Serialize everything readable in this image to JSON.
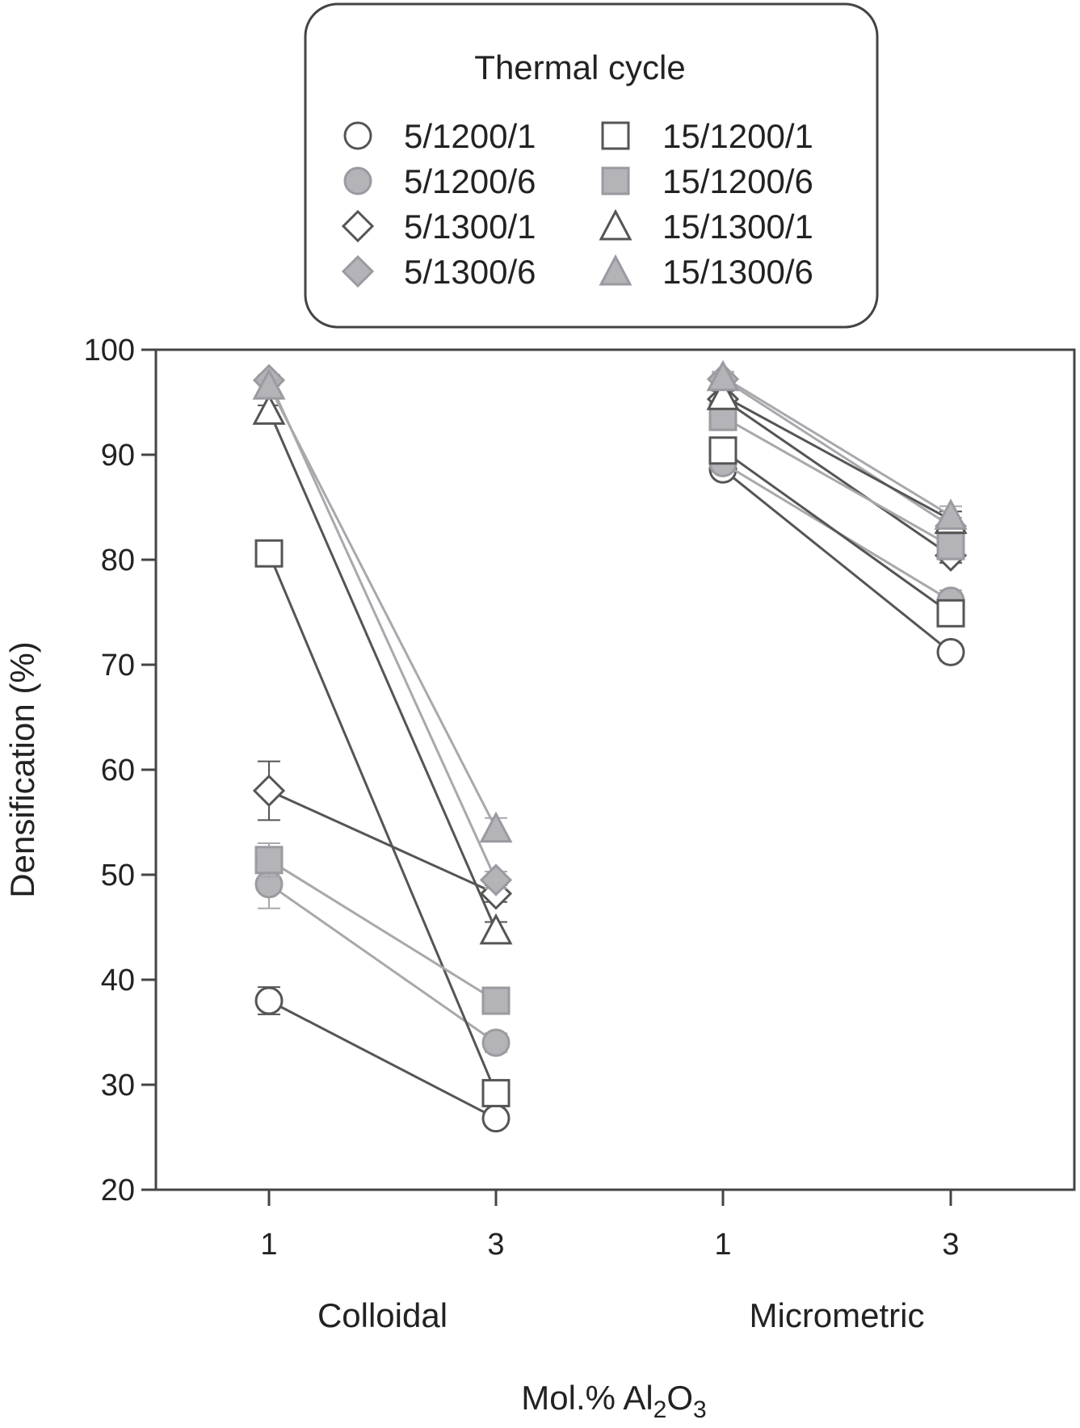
{
  "chart_data": {
    "type": "line",
    "legend": {
      "title": "Thermal cycle",
      "placement": "top-center",
      "columns": 2
    },
    "ylabel": "Densification (%)",
    "xlabel_parts": [
      "Mol.% Al",
      "2",
      "O",
      "3"
    ],
    "ylim": [
      20,
      100
    ],
    "yticks": [
      20,
      30,
      40,
      50,
      60,
      70,
      80,
      90,
      100
    ],
    "grid": false,
    "groups": [
      {
        "label": "Colloidal",
        "categories": [
          "1",
          "3"
        ]
      },
      {
        "label": "Micrometric",
        "categories": [
          "1",
          "3"
        ]
      }
    ],
    "series": [
      {
        "name": "5/1200/1",
        "marker": "circle",
        "filled": false,
        "color": "#555555",
        "colloidal": [
          38.0,
          26.8
        ],
        "micrometric": [
          88.6,
          71.2
        ],
        "err_colloidal": [
          1.3,
          0.6
        ],
        "err_micrometric": [
          0.6,
          0.8
        ]
      },
      {
        "name": "5/1200/6",
        "marker": "circle",
        "filled": true,
        "color": "#b3b3b8",
        "colloidal": [
          49.1,
          34.0
        ],
        "micrometric": [
          89.2,
          76.1
        ],
        "err_colloidal": [
          2.3,
          0.9
        ],
        "err_micrometric": [
          0.8,
          1.0
        ]
      },
      {
        "name": "5/1300/1",
        "marker": "diamond",
        "filled": false,
        "color": "#555555",
        "colloidal": [
          58.0,
          48.2
        ],
        "micrometric": [
          95.3,
          80.4
        ],
        "err_colloidal": [
          2.8,
          0.8
        ],
        "err_micrometric": [
          0.8,
          0.7
        ]
      },
      {
        "name": "5/1300/6",
        "marker": "diamond",
        "filled": true,
        "color": "#b3b3b8",
        "colloidal": [
          97.1,
          49.5
        ],
        "micrometric": [
          97.2,
          83.2
        ],
        "err_colloidal": [
          0.5,
          0.8
        ],
        "err_micrometric": [
          0.5,
          0.8
        ]
      },
      {
        "name": "15/1200/1",
        "marker": "square",
        "filled": false,
        "color": "#555555",
        "colloidal": [
          80.6,
          29.2
        ],
        "micrometric": [
          90.4,
          74.9
        ],
        "err_colloidal": [
          0.8,
          1.0
        ],
        "err_micrometric": [
          1.0,
          0.8
        ]
      },
      {
        "name": "15/1200/6",
        "marker": "square",
        "filled": true,
        "color": "#b3b3b8",
        "colloidal": [
          51.4,
          38.0
        ],
        "micrometric": [
          93.6,
          81.3
        ],
        "err_colloidal": [
          1.6,
          0.8
        ],
        "err_micrometric": [
          0.8,
          0.8
        ]
      },
      {
        "name": "15/1300/1",
        "marker": "triangle",
        "filled": false,
        "color": "#555555",
        "colloidal": [
          94.2,
          44.7
        ],
        "micrometric": [
          95.6,
          83.8
        ],
        "err_colloidal": [
          0.5,
          0.8
        ],
        "err_micrometric": [
          0.5,
          0.8
        ]
      },
      {
        "name": "15/1300/6",
        "marker": "triangle",
        "filled": true,
        "color": "#b3b3b8",
        "colloidal": [
          96.6,
          54.4
        ],
        "micrometric": [
          97.4,
          84.2
        ],
        "err_colloidal": [
          0.5,
          1.0
        ],
        "err_micrometric": [
          0.5,
          0.9
        ]
      }
    ]
  }
}
